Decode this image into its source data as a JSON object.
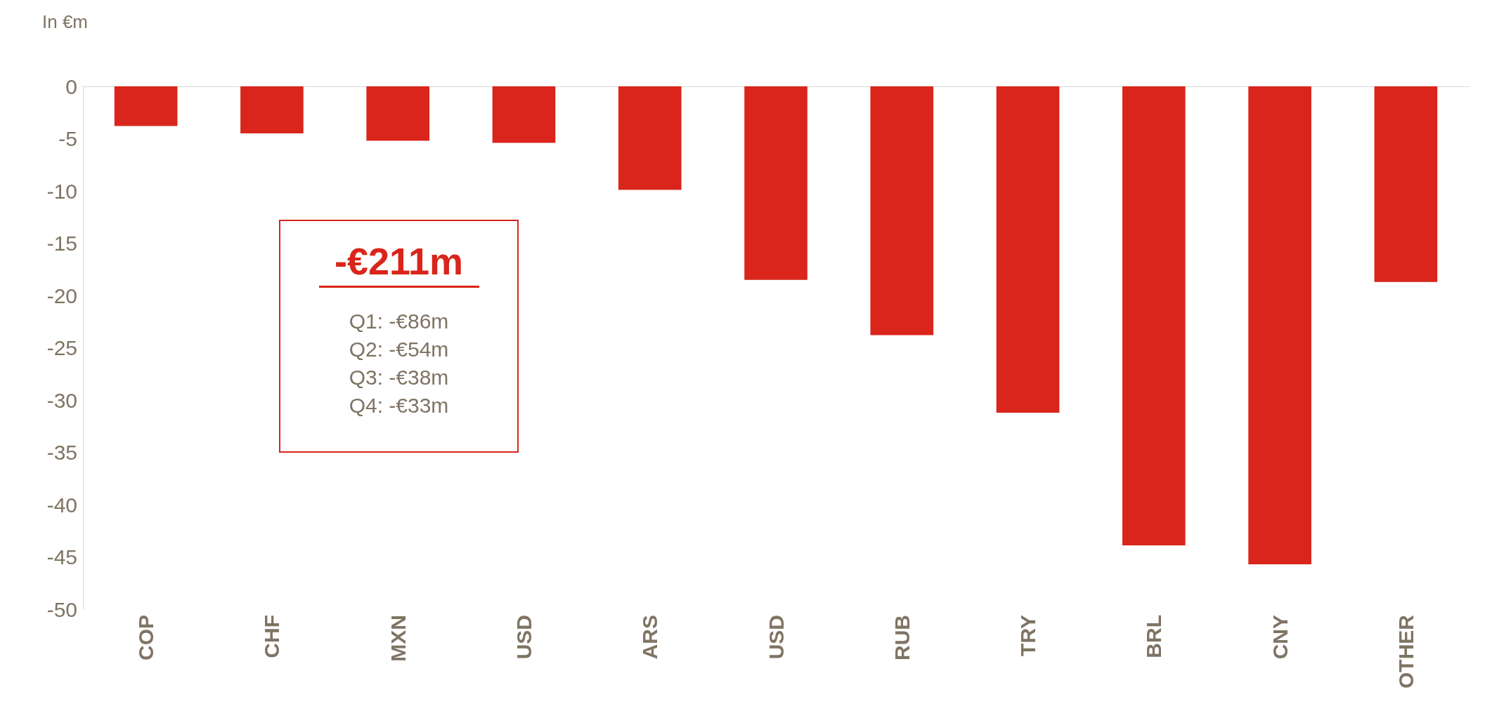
{
  "chart_data": {
    "type": "bar",
    "ylabel": "In €m",
    "categories": [
      "COP",
      "CHF",
      "MXN",
      "USD",
      "ARS",
      "USD",
      "RUB",
      "TRY",
      "BRL",
      "CNY",
      "OTHER"
    ],
    "values": [
      -3.8,
      -4.5,
      -5.2,
      -5.4,
      -9.9,
      -18.5,
      -23.8,
      -31.2,
      -43.9,
      -45.7,
      -18.7
    ],
    "color": "#d9251b",
    "ylim": [
      -50,
      0
    ],
    "yticks": [
      -50,
      -45,
      -40,
      -35,
      -30,
      -25,
      -20,
      -15,
      -10,
      -5,
      0
    ],
    "grid": false,
    "annotations": [
      "-€211m",
      "Q1: -€86m",
      "Q2: -€54m",
      "Q3: -€38m",
      "Q4: -€33m"
    ]
  }
}
